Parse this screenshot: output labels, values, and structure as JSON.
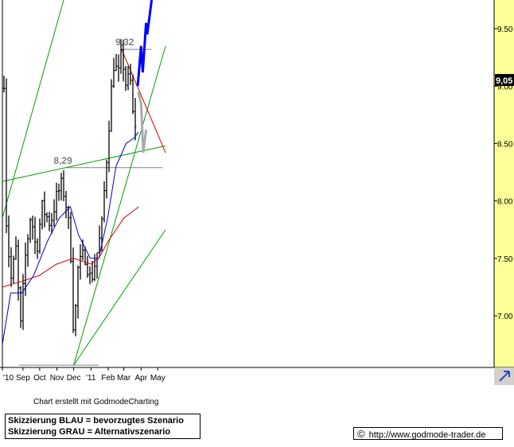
{
  "chart_data": {
    "type": "ohlc",
    "title": "",
    "xlabel": "",
    "ylabel": "",
    "ylim": [
      6.55,
      9.75
    ],
    "yticks": [
      "7.00",
      "7.50",
      "8.00",
      "8.50",
      "9.00",
      "9.50"
    ],
    "xticks": [
      "'10",
      "Sep",
      "Oct",
      "Nov",
      "Dec",
      "'11",
      "Feb",
      "Mar",
      "Apr",
      "May"
    ],
    "last_price_label": "9,05",
    "last_price": 9.05,
    "annotations": [
      {
        "text": "9,32",
        "value": 9.32
      },
      {
        "text": "8,29",
        "value": 8.29
      }
    ],
    "price_anchors": [
      [
        "2010-08-01",
        7.9
      ],
      [
        "2010-08-10",
        7.3
      ],
      [
        "2010-08-20",
        7.6
      ],
      [
        "2010-08-27",
        6.85
      ],
      [
        "2010-09-05",
        7.5
      ],
      [
        "2010-09-15",
        7.9
      ],
      [
        "2010-09-25",
        7.55
      ],
      [
        "2010-10-05",
        7.95
      ],
      [
        "2010-10-20",
        7.8
      ],
      [
        "2010-11-01",
        8.05
      ],
      [
        "2010-11-10",
        8.15
      ],
      [
        "2010-11-20",
        7.9
      ],
      [
        "2010-11-28",
        7.4
      ],
      [
        "2010-12-01",
        6.75
      ],
      [
        "2010-12-08",
        7.4
      ],
      [
        "2010-12-20",
        7.55
      ],
      [
        "2011-01-01",
        7.3
      ],
      [
        "2011-01-10",
        7.5
      ],
      [
        "2011-01-20",
        7.75
      ],
      [
        "2011-01-31",
        8.5
      ],
      [
        "2011-02-10",
        9.2
      ],
      [
        "2011-02-20",
        9.1
      ],
      [
        "2011-02-25",
        9.3
      ],
      [
        "2011-03-05",
        9.0
      ],
      [
        "2011-03-12",
        9.1
      ],
      [
        "2011-03-18",
        8.7
      ],
      [
        "2011-03-20",
        8.5
      ],
      [
        "2011-03-25",
        9.05
      ]
    ],
    "moving_averages": [
      {
        "color": "#0000cc",
        "points": [
          [
            "2010-07-26",
            6.75
          ],
          [
            "2010-08-10",
            7.2
          ],
          [
            "2010-08-30",
            7.2
          ],
          [
            "2010-09-20",
            7.35
          ],
          [
            "2010-10-15",
            7.65
          ],
          [
            "2010-11-05",
            7.85
          ],
          [
            "2010-11-25",
            7.95
          ],
          [
            "2010-12-10",
            7.7
          ],
          [
            "2010-12-31",
            7.5
          ],
          [
            "2011-01-15",
            7.5
          ],
          [
            "2011-01-31",
            7.85
          ],
          [
            "2011-02-15",
            8.3
          ],
          [
            "2011-03-05",
            8.5
          ],
          [
            "2011-03-20",
            8.55
          ],
          [
            "2011-03-27",
            8.6
          ]
        ]
      },
      {
        "color": "#cc0000",
        "points": [
          [
            "2010-07-26",
            7.25
          ],
          [
            "2010-08-30",
            7.3
          ],
          [
            "2010-09-30",
            7.35
          ],
          [
            "2010-10-31",
            7.45
          ],
          [
            "2010-12-01",
            7.5
          ],
          [
            "2011-01-01",
            7.45
          ],
          [
            "2011-01-15",
            7.5
          ],
          [
            "2011-02-01",
            7.65
          ],
          [
            "2011-03-01",
            7.85
          ],
          [
            "2011-03-28",
            7.95
          ]
        ]
      }
    ],
    "trendlines": [
      {
        "color": "#00a000",
        "points": [
          [
            "2010-07-26",
            7.85
          ],
          [
            "2010-11-13",
            9.75
          ]
        ]
      },
      {
        "color": "#00a000",
        "points": [
          [
            "2010-07-26",
            8.17
          ],
          [
            "2011-05-15",
            8.48
          ]
        ]
      },
      {
        "color": "#00a000",
        "points": [
          [
            "2010-12-01",
            6.57
          ],
          [
            "2011-05-15",
            9.35
          ]
        ]
      },
      {
        "color": "#00a000",
        "points": [
          [
            "2010-12-01",
            6.57
          ],
          [
            "2011-05-15",
            7.75
          ]
        ]
      },
      {
        "color": "#cc0000",
        "points": [
          [
            "2011-02-25",
            9.32
          ],
          [
            "2011-05-15",
            8.42
          ]
        ]
      }
    ],
    "horizontal_lines": [
      {
        "color": "#808080",
        "value": 9.32,
        "from": "2011-02-25",
        "to": "2011-04-20"
      },
      {
        "color": "#808080",
        "value": 8.29,
        "from": "2010-11-15",
        "to": "2011-05-10"
      },
      {
        "color": "#808080",
        "value": 6.57,
        "from": "2010-08-25",
        "to": "2011-01-15"
      }
    ],
    "scenarios": [
      {
        "name": "BLAU",
        "color": "#0000ff",
        "points": [
          [
            "2011-03-26",
            9.0
          ],
          [
            "2011-04-01",
            9.35
          ],
          [
            "2011-04-04",
            9.12
          ],
          [
            "2011-04-10",
            9.55
          ],
          [
            "2011-04-12",
            9.45
          ],
          [
            "2011-04-20",
            9.75
          ]
        ]
      },
      {
        "name": "GRAU",
        "color": "#aaaaaa",
        "points": [
          [
            "2011-03-27",
            8.95
          ],
          [
            "2011-04-01",
            8.85
          ],
          [
            "2011-04-05",
            8.42
          ],
          [
            "2011-04-10",
            8.62
          ]
        ]
      }
    ]
  },
  "credit": "Chart erstellt mit GodmodeCharting",
  "legend": {
    "line1": "Skizzierung BLAU = bevorzugtes Szenario",
    "line2": "Skizzierung GRAU = Alternativszenario"
  },
  "url": "http://www.godmode-trader.de",
  "copyright_symbol": "©",
  "scroll_arrow_icon": "arrow-icon"
}
